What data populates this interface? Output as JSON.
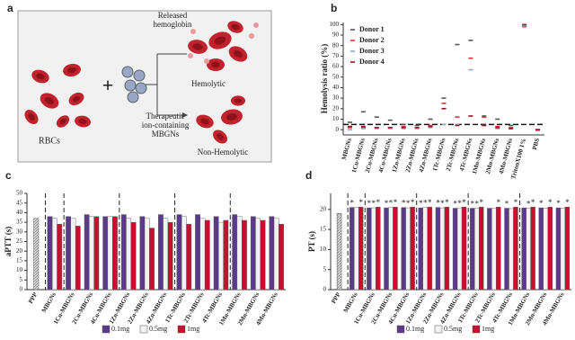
{
  "diagram": {
    "panel": "a",
    "released": [
      "Released",
      "hemoglobin"
    ],
    "hemolytic": "Hemolytic",
    "rbcs": "RBCs",
    "plus": "+",
    "therapeutic": [
      "Therapeutic",
      "ion-containing",
      "MBGNs"
    ],
    "non_hemolytic": "Non-Hemolytic"
  },
  "chart_data": [
    {
      "type": "scatter",
      "panel": "b",
      "y_label": "Hemolysis ratio (%)",
      "categories": [
        "MBGNs",
        "1Cu-MBGNs",
        "2Cu-MBGNs",
        "4Cu-MBGNs",
        "1Zn-MBGNs",
        "2Zn-MBGNs",
        "4Zn-MBGNs",
        "1Tc-MBGNs",
        "2Tc-MBGNs",
        "4Tc-MBGNs",
        "1Mn-MBGNs",
        "2Mn-MBGNs",
        "4Mn-MBGNs",
        "TritonX100 1%",
        "PBS"
      ],
      "series": [
        {
          "name": "Donor 1",
          "color": "#555555",
          "values": [
            7,
            17,
            12,
            9,
            5,
            4,
            10,
            30,
            81,
            85,
            13,
            10,
            4,
            99,
            0
          ]
        },
        {
          "name": "Donor 2",
          "color": "#e0303a",
          "values": [
            2,
            2,
            2,
            2,
            3,
            2,
            4,
            25,
            12,
            68,
            12,
            3,
            2,
            98,
            0
          ]
        },
        {
          "name": "Donor 3",
          "color": "#8da6c8",
          "values": [
            0,
            1,
            1,
            1,
            1,
            1,
            2,
            5,
            5,
            57,
            4,
            1,
            1,
            99,
            -1
          ]
        },
        {
          "name": "Donor 4",
          "color": "#a01020",
          "values": [
            3,
            3,
            2,
            2,
            2,
            2,
            3,
            20,
            4,
            13,
            4,
            2,
            1,
            100,
            0
          ]
        }
      ],
      "ylim": [
        -5,
        102
      ],
      "yticks": [
        0,
        10,
        20,
        30,
        40,
        50,
        60,
        70,
        80,
        90,
        100
      ],
      "reference_line": 5
    },
    {
      "type": "bar",
      "panel": "c",
      "y_label": "aPTT (s)",
      "categories": [
        "PPP",
        "MBGNs",
        "1Cu-MBGNs",
        "2Cu-MBGNs",
        "4Cu-MBGNs",
        "1Zn-MBGNs",
        "2Zn-MBGNs",
        "4Zn-MBGNs",
        "1Tc-MBGNs",
        "2Tc-MBGNs",
        "4Tc-MBGNs",
        "1Mn-MBGNs",
        "2Mn-MBGNs",
        "4Mn-MBGNs"
      ],
      "control_value": 37,
      "significance_symbol": "*",
      "series": [
        {
          "name": "0.1mg",
          "color": "#5b3a8c",
          "values": [
            null,
            38,
            38,
            39,
            38,
            39,
            38,
            39,
            39,
            39,
            38,
            39,
            38,
            38
          ]
        },
        {
          "name": "0.5mg",
          "color": "#f2f2f2",
          "values": [
            null,
            37,
            37,
            38,
            38,
            37,
            37,
            37,
            38,
            37,
            35,
            38,
            37,
            37
          ]
        },
        {
          "name": "1mg",
          "color": "#c8102e",
          "values": [
            null,
            34,
            33,
            38,
            38,
            35,
            32,
            35,
            34,
            36,
            36,
            36,
            36,
            34
          ]
        }
      ],
      "ylim": [
        0,
        50
      ],
      "yticks": [
        0,
        5,
        10,
        15,
        20,
        25,
        30,
        35,
        40,
        45,
        50
      ]
    },
    {
      "type": "bar",
      "panel": "d",
      "y_label": "PT (s)",
      "categories": [
        "PPP",
        "MBGNs",
        "1Cu-MBGNs",
        "2Cu-MBGNs",
        "4Cu-MBGNs",
        "1Zn-MBGNs",
        "2Zn-MBGNs",
        "4Zn-MBGNs",
        "1Tc-MBGNs",
        "2Tc-MBGNs",
        "4Tc-MBGNs",
        "1Mn-MBGNs",
        "2Mn-MBGNs",
        "4Mn-MBGNs"
      ],
      "control_value": 19,
      "significance_symbol": "*",
      "series": [
        {
          "name": "0.1mg",
          "color": "#5b3a8c",
          "values": [
            null,
            20.5,
            20.4,
            20.4,
            20.5,
            20.4,
            20.5,
            20.3,
            20.3,
            20.3,
            20.3,
            20.4,
            20.4,
            20.4
          ],
          "significant": [
            null,
            true,
            true,
            true,
            true,
            true,
            true,
            true,
            true,
            false,
            true,
            false,
            true,
            true
          ]
        },
        {
          "name": "0.5mg",
          "color": "#f2f2f2",
          "values": [
            null,
            20.5,
            20.4,
            20.5,
            20.4,
            20.5,
            20.4,
            20.4,
            20.3,
            20.3,
            20.2,
            20.3,
            20.3,
            20.3
          ],
          "significant": [
            null,
            false,
            true,
            true,
            true,
            true,
            true,
            true,
            true,
            false,
            false,
            true,
            false,
            false
          ]
        },
        {
          "name": "1mg",
          "color": "#c8102e",
          "values": [
            null,
            20.6,
            20.6,
            20.6,
            20.6,
            20.6,
            20.6,
            20.6,
            20.6,
            20.6,
            20.6,
            20.6,
            20.6,
            20.6
          ],
          "significant": [
            null,
            true,
            true,
            true,
            true,
            true,
            true,
            true,
            true,
            true,
            true,
            true,
            true,
            true
          ]
        }
      ],
      "ylim": [
        0,
        24
      ],
      "yticks": [
        0,
        5,
        10,
        15,
        20
      ]
    }
  ]
}
